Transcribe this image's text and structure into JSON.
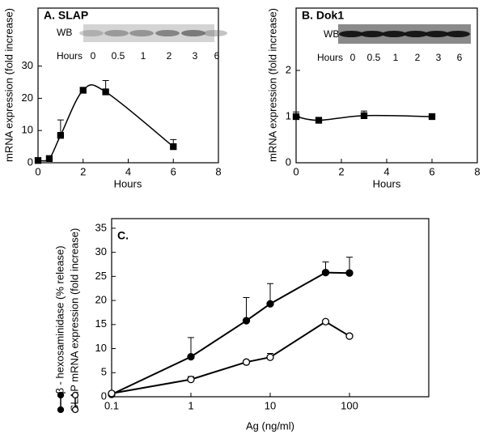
{
  "chart_data": [
    {
      "type": "line",
      "title": "A. SLAP",
      "xlabel": "Hours",
      "ylabel": "mRNA expression (fold increase)",
      "x": [
        0,
        0.5,
        1,
        2,
        3,
        6
      ],
      "series": [
        {
          "color": "#000",
          "marker": "square",
          "fill": "#000",
          "values": [
            0.7,
            1.3,
            8.5,
            22.5,
            22,
            5
          ],
          "errors": [
            null,
            null,
            4.8,
            null,
            3.5,
            2.2
          ]
        }
      ],
      "xlim": [
        0,
        8
      ],
      "xticks": [
        0,
        2,
        4,
        6,
        8
      ],
      "ylim": [
        0,
        48
      ],
      "yticks": [
        0,
        10,
        20,
        30
      ],
      "smooth": true,
      "inset": {
        "label": "WB",
        "row_label": "Hours",
        "lanes": [
          "0",
          "0.5",
          "1",
          "2",
          "3",
          "6"
        ]
      }
    },
    {
      "type": "line",
      "title": "B. Dok1",
      "xlabel": "Hours",
      "ylabel": "mRNA expression (fold increase)",
      "x": [
        0,
        1,
        3,
        6
      ],
      "series": [
        {
          "color": "#000",
          "marker": "square",
          "fill": "#000",
          "values": [
            1,
            0.92,
            1.02,
            1
          ],
          "errors": [
            0.1,
            0.06,
            0.1,
            null
          ]
        }
      ],
      "xlim": [
        0,
        8
      ],
      "xticks": [
        0,
        2,
        4,
        6,
        8
      ],
      "ylim": [
        0,
        3.35
      ],
      "yticks": [
        0,
        1,
        2
      ],
      "smooth": true,
      "inset": {
        "label": "WB",
        "row_label": "Hours",
        "lanes": [
          "0",
          "0.5",
          "1",
          "2",
          "3",
          "6"
        ]
      }
    },
    {
      "type": "line",
      "title": "C.",
      "xlabel": "Ag (ng/ml)",
      "xscale": "log",
      "x": [
        0.1,
        1,
        5,
        10,
        50,
        100
      ],
      "series": [
        {
          "name": "β - hexosaminidase (% release)",
          "color": "#000",
          "marker": "circle",
          "fill": "#000",
          "values": [
            0.5,
            8.3,
            15.8,
            19.3,
            25.8,
            25.7
          ],
          "errors": [
            null,
            4,
            4.8,
            4.2,
            2.2,
            3.3
          ]
        },
        {
          "name": "SLAP mRNA expression (fold increase)",
          "color": "#000",
          "marker": "circle",
          "fill": "#fff",
          "values": [
            0.7,
            3.6,
            7.2,
            8.2,
            15.6,
            12.6
          ],
          "errors": [
            null,
            0.6,
            null,
            0.8,
            null,
            null
          ]
        }
      ],
      "xlim": [
        0.1,
        1000
      ],
      "xticks": [
        0.1,
        1,
        10,
        100
      ],
      "ylim": [
        0,
        37
      ],
      "yticks": [
        0,
        5,
        10,
        15,
        20,
        25,
        30,
        35
      ],
      "smooth": false
    }
  ]
}
